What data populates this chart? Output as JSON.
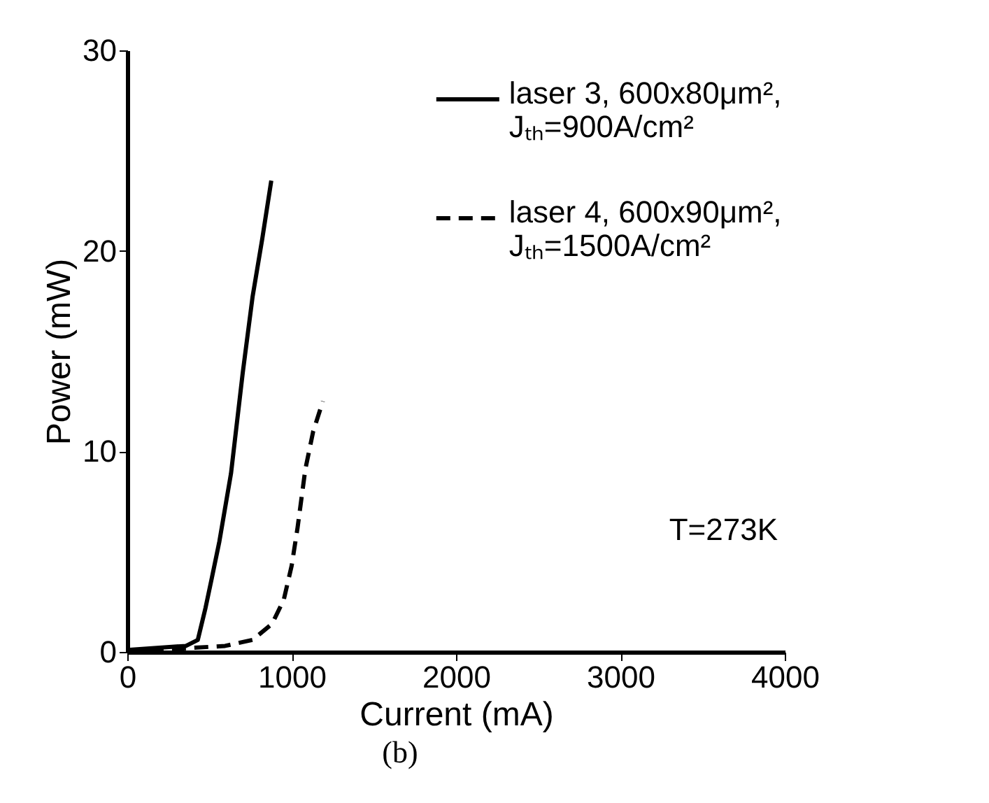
{
  "chart_data": {
    "type": "line",
    "xlabel": "Current (mA)",
    "ylabel": "Power (mW)",
    "xlim": [
      0,
      4000
    ],
    "xticks": [
      0,
      1000,
      2000,
      3000,
      4000
    ],
    "ylim": [
      0,
      30
    ],
    "yticks": [
      0,
      10,
      20,
      30
    ],
    "grid": false,
    "legend": "top right",
    "marker": "none",
    "annotations": [
      "T=273K",
      "(b)"
    ],
    "series": [
      {
        "name": "laser 3, 600x80μm², Jₜₕ=900A/cm²",
        "color": "#000000",
        "line_style": "solid",
        "x": [
          0,
          357,
          429,
          476,
          512,
          560,
          631,
          702,
          762,
          821,
          876
        ],
        "values": [
          0.1,
          0.3,
          0.6,
          2.2,
          3.6,
          5.5,
          8.9,
          13.9,
          17.7,
          20.6,
          23.5
        ]
      },
      {
        "name": "laser 4, 600x90μm², Jₜₕ=1500A/cm²",
        "color": "#000000",
        "line_style": "dashed",
        "x": [
          0,
          595,
          762,
          881,
          952,
          1000,
          1036,
          1083,
          1131,
          1190
        ],
        "values": [
          0,
          0.3,
          0.6,
          1.4,
          2.6,
          4.3,
          6.2,
          9.1,
          11.0,
          12.5
        ]
      }
    ]
  }
}
